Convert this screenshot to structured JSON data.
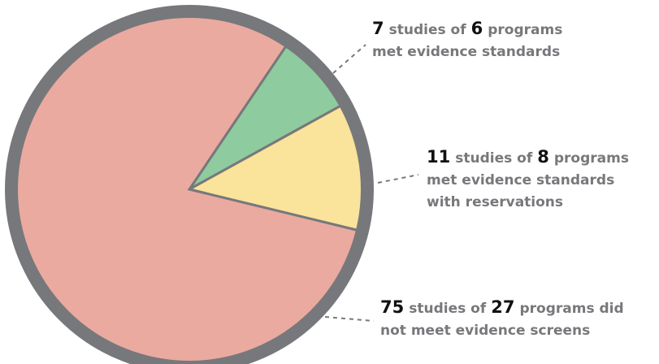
{
  "chart_data": {
    "type": "pie",
    "slices": [
      {
        "value": 7,
        "color": "#8ecb9e",
        "programs": 6,
        "studies_text": "studies of",
        "programs_text": "programs",
        "lines": [
          "met evidence standards"
        ]
      },
      {
        "value": 11,
        "color": "#fae39a",
        "programs": 8,
        "studies_text": "studies of",
        "programs_text": "programs",
        "lines": [
          "met evidence standards",
          "with reservations"
        ]
      },
      {
        "value": 75,
        "color": "#eaaaa0",
        "programs": 27,
        "studies_text": "studies of",
        "programs_text": "programs did",
        "lines": [
          "not meet evidence screens"
        ]
      }
    ],
    "border_color": "#77787b"
  }
}
